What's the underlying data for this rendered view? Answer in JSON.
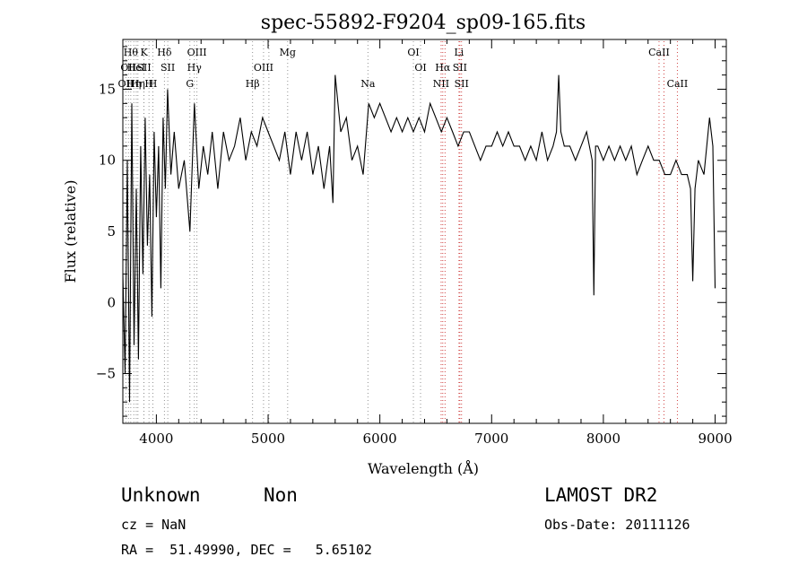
{
  "chart_data": {
    "type": "line",
    "title": "spec-55892-F9204_sp09-165.fits",
    "xlabel": "Wavelength (Å)",
    "ylabel": "Flux (relative)",
    "xlim": [
      3700,
      9100
    ],
    "ylim": [
      -8.5,
      18.5
    ],
    "xticks": [
      4000,
      5000,
      6000,
      7000,
      8000,
      9000
    ],
    "yticks": [
      -5,
      0,
      5,
      10,
      15
    ],
    "grid": false,
    "series": [
      {
        "x": [
          3700,
          3720,
          3740,
          3760,
          3780,
          3800,
          3820,
          3840,
          3860,
          3880,
          3900,
          3920,
          3940,
          3960,
          3980,
          4000,
          4020,
          4040,
          4060,
          4080,
          4100,
          4130,
          4160,
          4200,
          4250,
          4300,
          4340,
          4380,
          4420,
          4460,
          4500,
          4550,
          4600,
          4650,
          4700,
          4750,
          4800,
          4850,
          4900,
          4950,
          5000,
          5050,
          5100,
          5150,
          5200,
          5250,
          5300,
          5350,
          5400,
          5450,
          5500,
          5550,
          5580,
          5600,
          5650,
          5700,
          5750,
          5800,
          5850,
          5900,
          5950,
          6000,
          6050,
          6100,
          6150,
          6200,
          6250,
          6300,
          6350,
          6400,
          6450,
          6500,
          6550,
          6600,
          6650,
          6700,
          6750,
          6800,
          6850,
          6900,
          6950,
          7000,
          7050,
          7100,
          7150,
          7200,
          7250,
          7300,
          7350,
          7400,
          7450,
          7500,
          7550,
          7580,
          7600,
          7620,
          7650,
          7700,
          7750,
          7800,
          7850,
          7900,
          7915,
          7930,
          7950,
          8000,
          8050,
          8100,
          8150,
          8200,
          8250,
          8300,
          8350,
          8400,
          8450,
          8500,
          8550,
          8600,
          8650,
          8700,
          8750,
          8780,
          8800,
          8820,
          8850,
          8900,
          8950,
          8980,
          9000
        ],
        "values": [
          2,
          -5,
          10,
          -7,
          14,
          -3,
          8,
          -4,
          11,
          2,
          13,
          4,
          9,
          -1,
          12,
          6,
          11,
          1,
          13,
          8,
          15,
          9,
          12,
          8,
          10,
          5,
          14,
          8,
          11,
          9,
          12,
          8,
          12,
          10,
          11,
          13,
          10,
          12,
          11,
          13,
          12,
          11,
          10,
          12,
          9,
          12,
          10,
          12,
          9,
          11,
          8,
          11,
          7,
          16,
          12,
          13,
          10,
          11,
          9,
          14,
          13,
          14,
          13,
          12,
          13,
          12,
          13,
          12,
          13,
          12,
          14,
          13,
          12,
          13,
          12,
          11,
          12,
          12,
          11,
          10,
          11,
          11,
          12,
          11,
          12,
          11,
          11,
          10,
          11,
          10,
          12,
          10,
          11,
          12,
          16,
          12,
          11,
          11,
          10,
          11,
          12,
          10,
          0.5,
          11,
          11,
          10,
          11,
          10,
          11,
          10,
          11,
          9,
          10,
          11,
          10,
          10,
          9,
          9,
          10,
          9,
          9,
          8,
          1.5,
          8,
          10,
          9,
          13,
          11,
          1
        ]
      }
    ],
    "line_markers": [
      {
        "wavelength": 3727,
        "label": "OII",
        "row": 3
      },
      {
        "wavelength": 3750,
        "label": "OII",
        "row": 2
      },
      {
        "wavelength": 3771,
        "label": "Hθ",
        "row": 1
      },
      {
        "wavelength": 3798,
        "label": "Hη",
        "row": 3
      },
      {
        "wavelength": 3820,
        "label": "HeI",
        "row": 2
      },
      {
        "wavelength": 3835,
        "label": "Hη",
        "row": 3
      },
      {
        "wavelength": 3889,
        "label": "K",
        "row": 1
      },
      {
        "wavelength": 3889,
        "label": "SII",
        "row": 2
      },
      {
        "wavelength": 3934,
        "label": "H",
        "row": 3
      },
      {
        "wavelength": 3969,
        "label": "H",
        "row": 3
      },
      {
        "wavelength": 4072,
        "label": "Hδ",
        "row": 1
      },
      {
        "wavelength": 4102,
        "label": "SII",
        "row": 2
      },
      {
        "wavelength": 4300,
        "label": "G",
        "row": 3
      },
      {
        "wavelength": 4340,
        "label": "Hγ",
        "row": 2
      },
      {
        "wavelength": 4363,
        "label": "OIII",
        "row": 1
      },
      {
        "wavelength": 4861,
        "label": "Hβ",
        "row": 3
      },
      {
        "wavelength": 4959,
        "label": "OIII",
        "row": 2
      },
      {
        "wavelength": 5007,
        "label": "",
        "row": 0
      },
      {
        "wavelength": 5175,
        "label": "Mg",
        "row": 1
      },
      {
        "wavelength": 5893,
        "label": "Na",
        "row": 3
      },
      {
        "wavelength": 6300,
        "label": "OI",
        "row": 1
      },
      {
        "wavelength": 6364,
        "label": "OI",
        "row": 2
      },
      {
        "wavelength": 6548,
        "label": "NII",
        "row": 3
      },
      {
        "wavelength": 6563,
        "label": "Hα",
        "row": 2
      },
      {
        "wavelength": 6583,
        "label": "",
        "row": 0
      },
      {
        "wavelength": 6708,
        "label": "Li",
        "row": 1
      },
      {
        "wavelength": 6716,
        "label": "SII",
        "row": 2
      },
      {
        "wavelength": 6731,
        "label": "SII",
        "row": 3
      },
      {
        "wavelength": 8498,
        "label": "CaII",
        "row": 1
      },
      {
        "wavelength": 8542,
        "label": "",
        "row": 0
      },
      {
        "wavelength": 8662,
        "label": "CaII",
        "row": 3
      }
    ]
  },
  "info": {
    "class": "Unknown",
    "subclass": "Non",
    "survey": "LAMOST DR2",
    "cz": "cz = NaN",
    "obs_date": "Obs-Date: 20111126",
    "coords": "RA =  51.49990, DEC =   5.65102"
  },
  "colors": {
    "spectrum": "#000000",
    "marker": "#cc3333",
    "marker_alt": "#888888"
  }
}
